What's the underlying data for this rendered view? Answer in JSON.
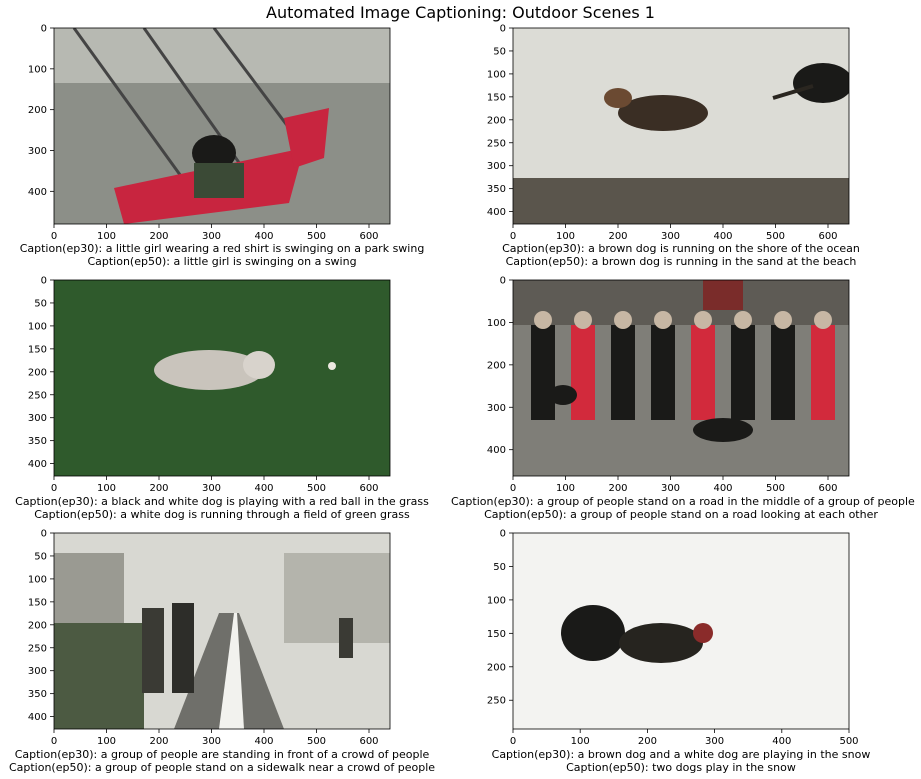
{
  "figure": {
    "title": "Automated Image Captioning: Outdoor Scenes 1"
  },
  "colors": {
    "playground_red": "#c8253f",
    "grass_green": "#2f5a2c",
    "gravel_gray": "#8c8f88",
    "water_gray": "#dcdcd6",
    "snow_white": "#f3f3f1",
    "coat_red": "#d22a3c",
    "dark": "#1a1a18"
  },
  "panels": [
    {
      "scene": "swing",
      "icon": "playground-swing-photo",
      "img_w": 640,
      "img_h": 480,
      "xticks": [
        0,
        100,
        200,
        300,
        400,
        500,
        600
      ],
      "yticks": [
        0,
        100,
        200,
        300,
        400
      ],
      "caption_ep30": "Caption(ep30): a little girl wearing a red shirt is swinging on a park swing",
      "caption_ep50": "Caption(ep50): a little girl is swinging on a swing"
    },
    {
      "scene": "beach",
      "icon": "dogs-at-shore-photo",
      "img_w": 640,
      "img_h": 427,
      "xticks": [
        0,
        100,
        200,
        300,
        400,
        500,
        600
      ],
      "yticks": [
        0,
        50,
        100,
        150,
        200,
        250,
        300,
        350,
        400
      ],
      "caption_ep30": "Caption(ep30): a brown dog is running on the shore of the ocean",
      "caption_ep50": "Caption(ep50): a brown dog is running in the sand at the beach"
    },
    {
      "scene": "grass",
      "icon": "dog-in-grass-photo",
      "img_w": 640,
      "img_h": 427,
      "xticks": [
        0,
        100,
        200,
        300,
        400,
        500,
        600
      ],
      "yticks": [
        0,
        50,
        100,
        150,
        200,
        250,
        300,
        350,
        400
      ],
      "caption_ep30": "Caption(ep30): a black and white dog is playing with a red ball in the grass",
      "caption_ep50": "Caption(ep50): a white dog is running through a field of green grass"
    },
    {
      "scene": "road-group",
      "icon": "people-walking-dogs-photo",
      "img_w": 640,
      "img_h": 462,
      "xticks": [
        0,
        100,
        200,
        300,
        400,
        500,
        600
      ],
      "yticks": [
        0,
        100,
        200,
        300,
        400
      ],
      "caption_ep30": "Caption(ep30): a group of people stand on a road in the middle of a group of people",
      "caption_ep50": "Caption(ep50): a group of people stand on a road looking at each other"
    },
    {
      "scene": "street",
      "icon": "street-walkers-photo",
      "img_w": 640,
      "img_h": 427,
      "xticks": [
        0,
        100,
        200,
        300,
        400,
        500,
        600
      ],
      "yticks": [
        0,
        50,
        100,
        150,
        200,
        250,
        300,
        350,
        400
      ],
      "caption_ep30": "Caption(ep30): a group of people are standing in front of a crowd of people",
      "caption_ep50": "Caption(ep50): a group of people stand on a sidewalk near a crowd of people"
    },
    {
      "scene": "snow",
      "icon": "dogs-in-snow-photo",
      "img_w": 500,
      "img_h": 293,
      "xticks": [
        0,
        100,
        200,
        300,
        400,
        500
      ],
      "yticks": [
        0,
        50,
        100,
        150,
        200,
        250
      ],
      "caption_ep30": "Caption(ep30): a brown dog and a white dog are playing in the snow",
      "caption_ep50": "Caption(ep50): two dogs play in the snow"
    }
  ]
}
